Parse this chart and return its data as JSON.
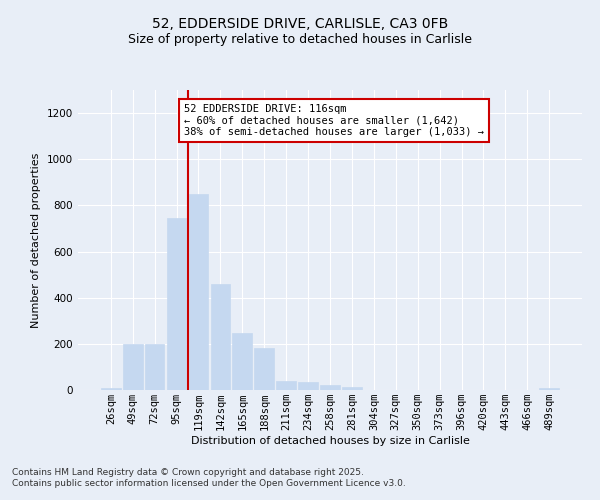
{
  "title_line1": "52, EDDERSIDE DRIVE, CARLISLE, CA3 0FB",
  "title_line2": "Size of property relative to detached houses in Carlisle",
  "xlabel": "Distribution of detached houses by size in Carlisle",
  "ylabel": "Number of detached properties",
  "categories": [
    "26sqm",
    "49sqm",
    "72sqm",
    "95sqm",
    "119sqm",
    "142sqm",
    "165sqm",
    "188sqm",
    "211sqm",
    "234sqm",
    "258sqm",
    "281sqm",
    "304sqm",
    "327sqm",
    "350sqm",
    "373sqm",
    "396sqm",
    "420sqm",
    "443sqm",
    "466sqm",
    "489sqm"
  ],
  "values": [
    10,
    200,
    200,
    745,
    850,
    460,
    248,
    180,
    38,
    35,
    20,
    12,
    0,
    2,
    0,
    0,
    0,
    0,
    0,
    0,
    8
  ],
  "bar_color": "#c5d8f0",
  "bar_edgecolor": "#c5d8f0",
  "vline_color": "#cc0000",
  "vline_x_index": 4,
  "annotation_text_line1": "52 EDDERSIDE DRIVE: 116sqm",
  "annotation_text_line2": "← 60% of detached houses are smaller (1,642)",
  "annotation_text_line3": "38% of semi-detached houses are larger (1,033) →",
  "annotation_box_color": "#ffffff",
  "annotation_box_edgecolor": "#cc0000",
  "ylim": [
    0,
    1300
  ],
  "yticks": [
    0,
    200,
    400,
    600,
    800,
    1000,
    1200
  ],
  "background_color": "#e8eef7",
  "grid_color": "#ffffff",
  "footer_line1": "Contains HM Land Registry data © Crown copyright and database right 2025.",
  "footer_line2": "Contains public sector information licensed under the Open Government Licence v3.0.",
  "title_fontsize": 10,
  "subtitle_fontsize": 9,
  "axis_label_fontsize": 8,
  "tick_fontsize": 7.5,
  "annotation_fontsize": 7.5,
  "footer_fontsize": 6.5
}
